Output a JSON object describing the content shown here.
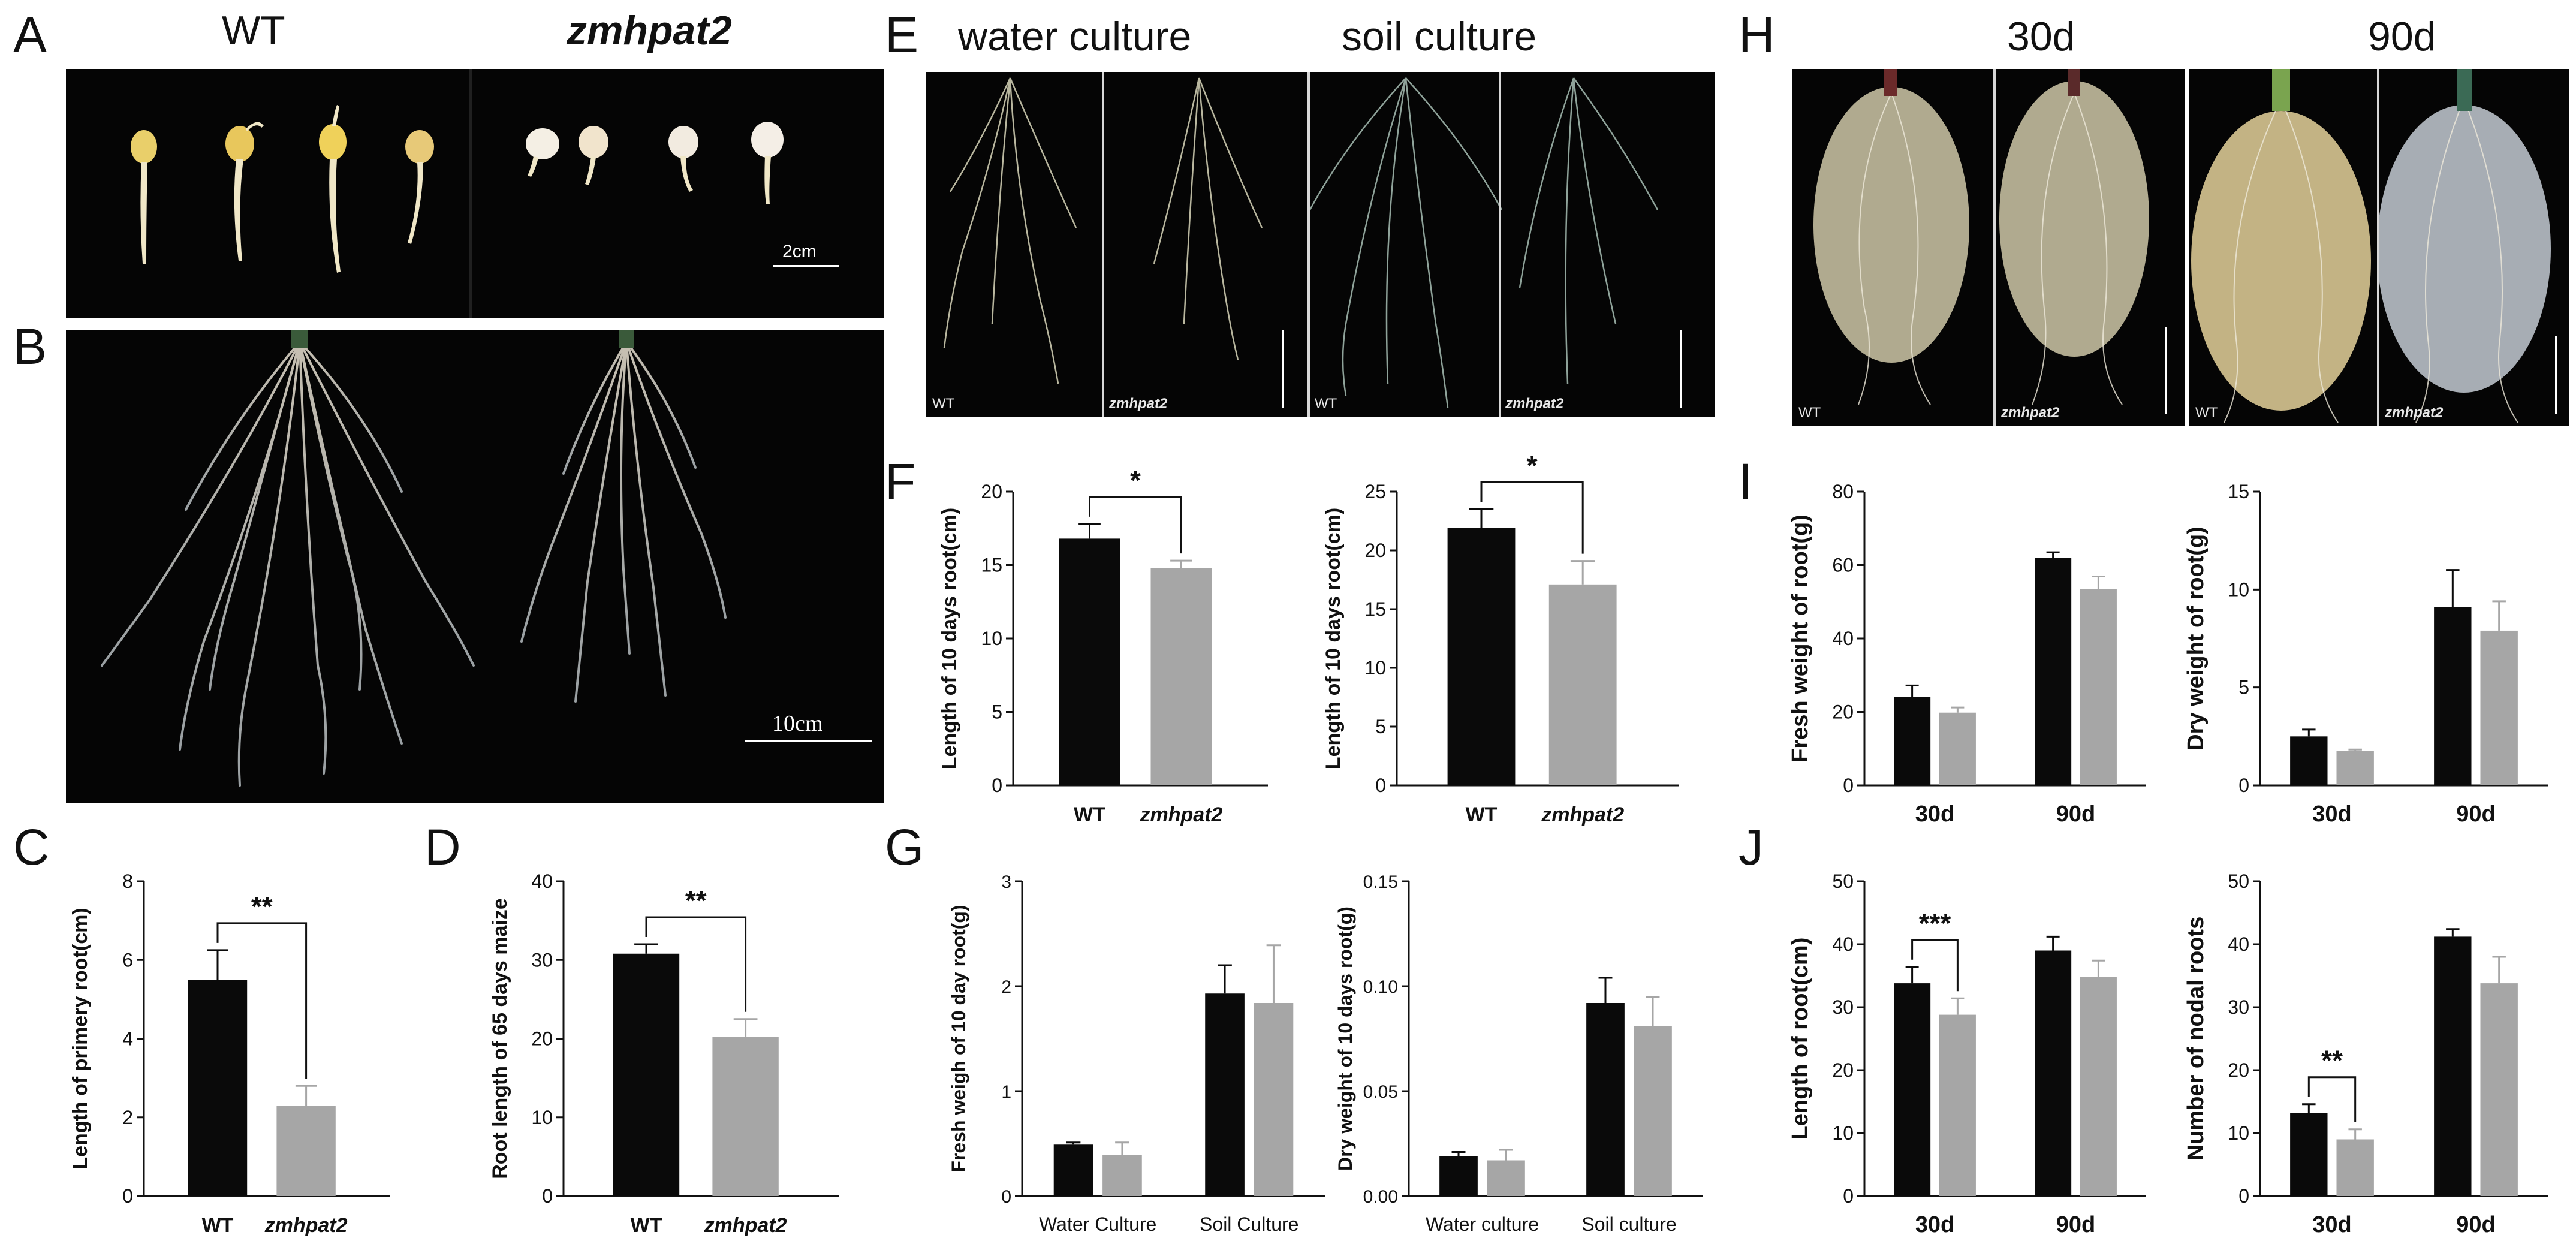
{
  "panels": {
    "A": {
      "label": "A",
      "title_wt": "WT",
      "title_mut": "zmhpat2",
      "scale": "2cm"
    },
    "B": {
      "label": "B",
      "scale": "10cm"
    },
    "E": {
      "label": "E",
      "title_water": "water culture",
      "title_soil": "soil culture",
      "tags": [
        "WT",
        "zmhpat2",
        "WT",
        "zmhpat2"
      ]
    },
    "H": {
      "label": "H",
      "title_30": "30d",
      "title_90": "90d",
      "tags": [
        "WT",
        "zmhpat2",
        "WT",
        "zmhpat2"
      ]
    },
    "C": {
      "label": "C"
    },
    "D": {
      "label": "D"
    },
    "F": {
      "label": "F"
    },
    "G": {
      "label": "G"
    },
    "I": {
      "label": "I"
    },
    "J": {
      "label": "J"
    }
  },
  "colors": {
    "wt": "#0a0a0a",
    "mut": "#a6a6a6"
  },
  "chart_data": [
    {
      "id": "C",
      "type": "bar",
      "ylabel": "Length of primery root(cm)",
      "categories": [
        "WT",
        "zmhpat2"
      ],
      "ylim": [
        0,
        8
      ],
      "yticks": [
        0,
        2,
        4,
        6,
        8
      ],
      "values": [
        5.5,
        2.3
      ],
      "errors": [
        0.75,
        0.5
      ],
      "sig": "**"
    },
    {
      "id": "D",
      "type": "bar",
      "ylabel": "Root length of 65 days maize",
      "categories": [
        "WT",
        "zmhpat2"
      ],
      "ylim": [
        0,
        40
      ],
      "yticks": [
        0,
        10,
        20,
        30,
        40
      ],
      "values": [
        30.8,
        20.2
      ],
      "errors": [
        1.2,
        2.3
      ],
      "sig": "**"
    },
    {
      "id": "F1",
      "type": "bar",
      "ylabel": "Length of 10 days root(cm)",
      "categories": [
        "WT",
        "zmhpat2"
      ],
      "ylim": [
        0,
        20
      ],
      "yticks": [
        0,
        5,
        10,
        15,
        20
      ],
      "values": [
        16.8,
        14.8
      ],
      "errors": [
        1.0,
        0.5
      ],
      "sig": "*"
    },
    {
      "id": "F2",
      "type": "bar",
      "ylabel": "Length of 10 days root(cm)",
      "categories": [
        "WT",
        "zmhpat2"
      ],
      "ylim": [
        0,
        25
      ],
      "yticks": [
        0,
        5,
        10,
        15,
        20,
        25
      ],
      "values": [
        21.9,
        17.1
      ],
      "errors": [
        1.6,
        2.0
      ],
      "sig": "*"
    },
    {
      "id": "G1",
      "type": "bar",
      "ylabel": "Fresh weigh of 10 day root(g)",
      "categories": [
        "Water Culture",
        "Soil Culture"
      ],
      "ylim": [
        0,
        3
      ],
      "yticks": [
        0,
        1,
        2,
        3
      ],
      "series": [
        {
          "values": [
            0.49,
            1.93
          ],
          "errors": [
            0.02,
            0.27
          ]
        },
        {
          "values": [
            0.39,
            1.84
          ],
          "errors": [
            0.12,
            0.55
          ]
        }
      ]
    },
    {
      "id": "G2",
      "type": "bar",
      "ylabel": "Dry weight of 10 days root(g)",
      "categories": [
        "Water culture",
        "Soil culture"
      ],
      "ylim": [
        0,
        0.15
      ],
      "yticks": [
        "0.00",
        "0.05",
        "0.10",
        "0.15"
      ],
      "series": [
        {
          "values": [
            0.019,
            0.092
          ],
          "errors": [
            0.002,
            0.012
          ]
        },
        {
          "values": [
            0.017,
            0.081
          ],
          "errors": [
            0.005,
            0.014
          ]
        }
      ]
    },
    {
      "id": "I1",
      "type": "bar",
      "ylabel": "Fresh weight of root(g)",
      "categories": [
        "30d",
        "90d"
      ],
      "ylim": [
        0,
        80
      ],
      "yticks": [
        0,
        20,
        40,
        60,
        80
      ],
      "series": [
        {
          "values": [
            24,
            62
          ],
          "errors": [
            3.2,
            1.5
          ]
        },
        {
          "values": [
            19.8,
            53.5
          ],
          "errors": [
            1.4,
            3.4
          ]
        }
      ]
    },
    {
      "id": "I2",
      "type": "bar",
      "ylabel": "Dry weight of root(g)",
      "categories": [
        "30d",
        "90d"
      ],
      "ylim": [
        0,
        15
      ],
      "yticks": [
        0,
        5,
        10,
        15
      ],
      "series": [
        {
          "values": [
            2.5,
            9.1
          ],
          "errors": [
            0.35,
            1.9
          ]
        },
        {
          "values": [
            1.75,
            7.9
          ],
          "errors": [
            0.08,
            1.5
          ]
        }
      ]
    },
    {
      "id": "J1",
      "type": "bar",
      "ylabel": "Length of root(cm)",
      "categories": [
        "30d",
        "90d"
      ],
      "ylim": [
        0,
        50
      ],
      "yticks": [
        0,
        10,
        20,
        30,
        40,
        50
      ],
      "series": [
        {
          "values": [
            33.8,
            39
          ],
          "errors": [
            2.6,
            2.2
          ]
        },
        {
          "values": [
            28.8,
            34.8
          ],
          "errors": [
            2.6,
            2.6
          ]
        }
      ],
      "sig": "***"
    },
    {
      "id": "J2",
      "type": "bar",
      "ylabel": "Number of  nodal roots",
      "categories": [
        "30d",
        "90d"
      ],
      "ylim": [
        0,
        50
      ],
      "yticks": [
        0,
        10,
        20,
        30,
        40,
        50
      ],
      "series": [
        {
          "values": [
            13.2,
            41.2
          ],
          "errors": [
            1.4,
            1.2
          ]
        },
        {
          "values": [
            9,
            33.8
          ],
          "errors": [
            1.6,
            4.2
          ]
        }
      ],
      "sig": "**"
    }
  ]
}
